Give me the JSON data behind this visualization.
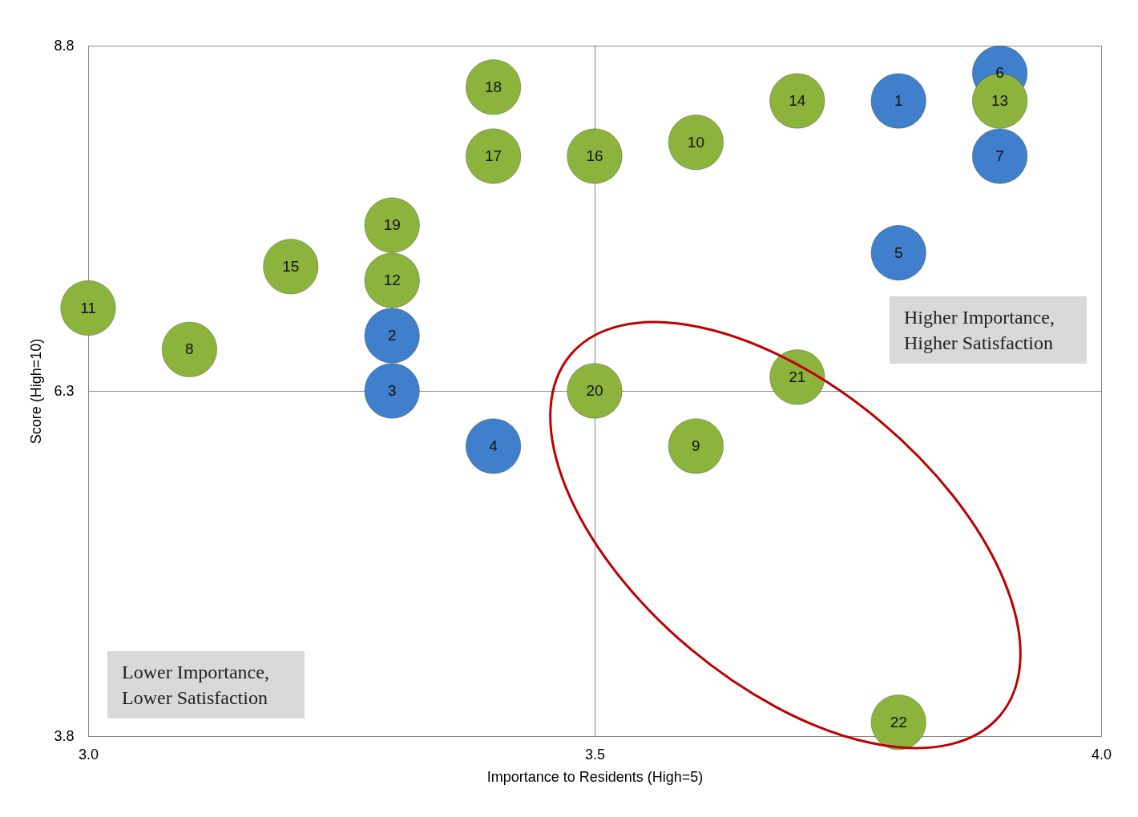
{
  "chart_data": {
    "type": "scatter",
    "xlabel": "Importance to Residents (High=5)",
    "ylabel": "Score (High=10)",
    "xlim": [
      3.0,
      4.0
    ],
    "ylim": [
      3.8,
      8.8
    ],
    "xticks": [
      {
        "value": 3.0,
        "label": "3.0"
      },
      3.5,
      {
        "value": 4.0,
        "label": "4.0"
      }
    ],
    "yticks": [
      3.8,
      6.3,
      8.8
    ],
    "grid": true,
    "legend": false,
    "marker": "circle",
    "series": [
      {
        "color": "#3f7fcc",
        "x": [
          3.8,
          3.3,
          3.3,
          3.4,
          3.8,
          3.9,
          3.9
        ],
        "values": [
          8.4,
          6.7,
          6.3,
          5.9,
          7.3,
          8.6,
          8.0
        ]
      },
      {
        "color": "#8cb43c",
        "x": [
          3.1,
          3.6,
          3.6,
          3.0,
          3.3,
          3.9,
          3.7,
          3.2,
          3.5,
          3.4,
          3.4,
          3.3,
          3.5,
          3.7,
          3.8
        ],
        "values": [
          6.6,
          5.9,
          8.1,
          6.9,
          7.1,
          8.4,
          8.4,
          7.2,
          8.0,
          8.0,
          8.5,
          7.5,
          6.3,
          6.4,
          3.9
        ]
      }
    ],
    "annotations": [
      {
        "text": "1",
        "x": 3.8,
        "y": 8.4
      },
      {
        "text": "2",
        "x": 3.3,
        "y": 6.7
      },
      {
        "text": "3",
        "x": 3.3,
        "y": 6.3
      },
      {
        "text": "4",
        "x": 3.4,
        "y": 5.9
      },
      {
        "text": "5",
        "x": 3.8,
        "y": 7.3
      },
      {
        "text": "6",
        "x": 3.9,
        "y": 8.6
      },
      {
        "text": "7",
        "x": 3.9,
        "y": 8.0
      },
      {
        "text": "8",
        "x": 3.1,
        "y": 6.6
      },
      {
        "text": "9",
        "x": 3.6,
        "y": 5.9
      },
      {
        "text": "10",
        "x": 3.6,
        "y": 8.1
      },
      {
        "text": "11",
        "x": 3.0,
        "y": 6.9
      },
      {
        "text": "12",
        "x": 3.3,
        "y": 7.1
      },
      {
        "text": "13",
        "x": 3.9,
        "y": 8.4
      },
      {
        "text": "14",
        "x": 3.7,
        "y": 8.4
      },
      {
        "text": "15",
        "x": 3.2,
        "y": 7.2
      },
      {
        "text": "16",
        "x": 3.5,
        "y": 8.0
      },
      {
        "text": "17",
        "x": 3.4,
        "y": 8.0
      },
      {
        "text": "18",
        "x": 3.4,
        "y": 8.5
      },
      {
        "text": "19",
        "x": 3.3,
        "y": 7.5
      },
      {
        "text": "20",
        "x": 3.5,
        "y": 6.3
      },
      {
        "text": "21",
        "x": 3.7,
        "y": 6.4
      },
      {
        "text": "22",
        "x": 3.8,
        "y": 3.9
      },
      "Higher Importance, Higher Satisfaction",
      "Lower Importance, Lower Satisfaction"
    ]
  }
}
